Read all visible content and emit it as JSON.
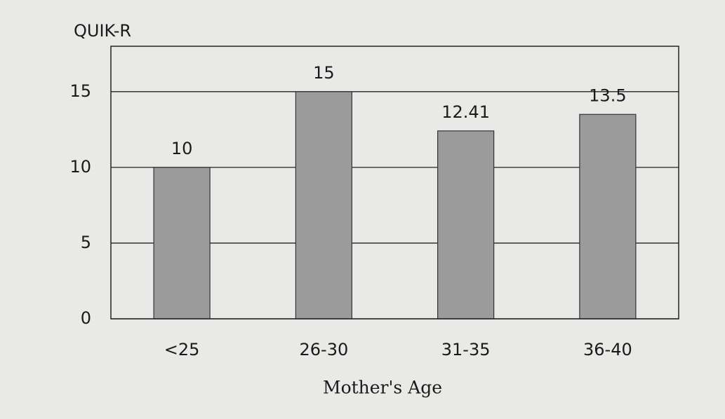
{
  "chart_data": {
    "type": "bar",
    "y_label": "QUIK-R",
    "x_label": "Mother's Age",
    "categories": [
      "<25",
      "26-30",
      "31-35",
      "36-40"
    ],
    "values": [
      10,
      15,
      12.41,
      13.5
    ],
    "color": "#9b9b9b",
    "ylim": [
      0,
      18
    ],
    "yticks": [
      0,
      5,
      10,
      15
    ],
    "grid": true
  }
}
